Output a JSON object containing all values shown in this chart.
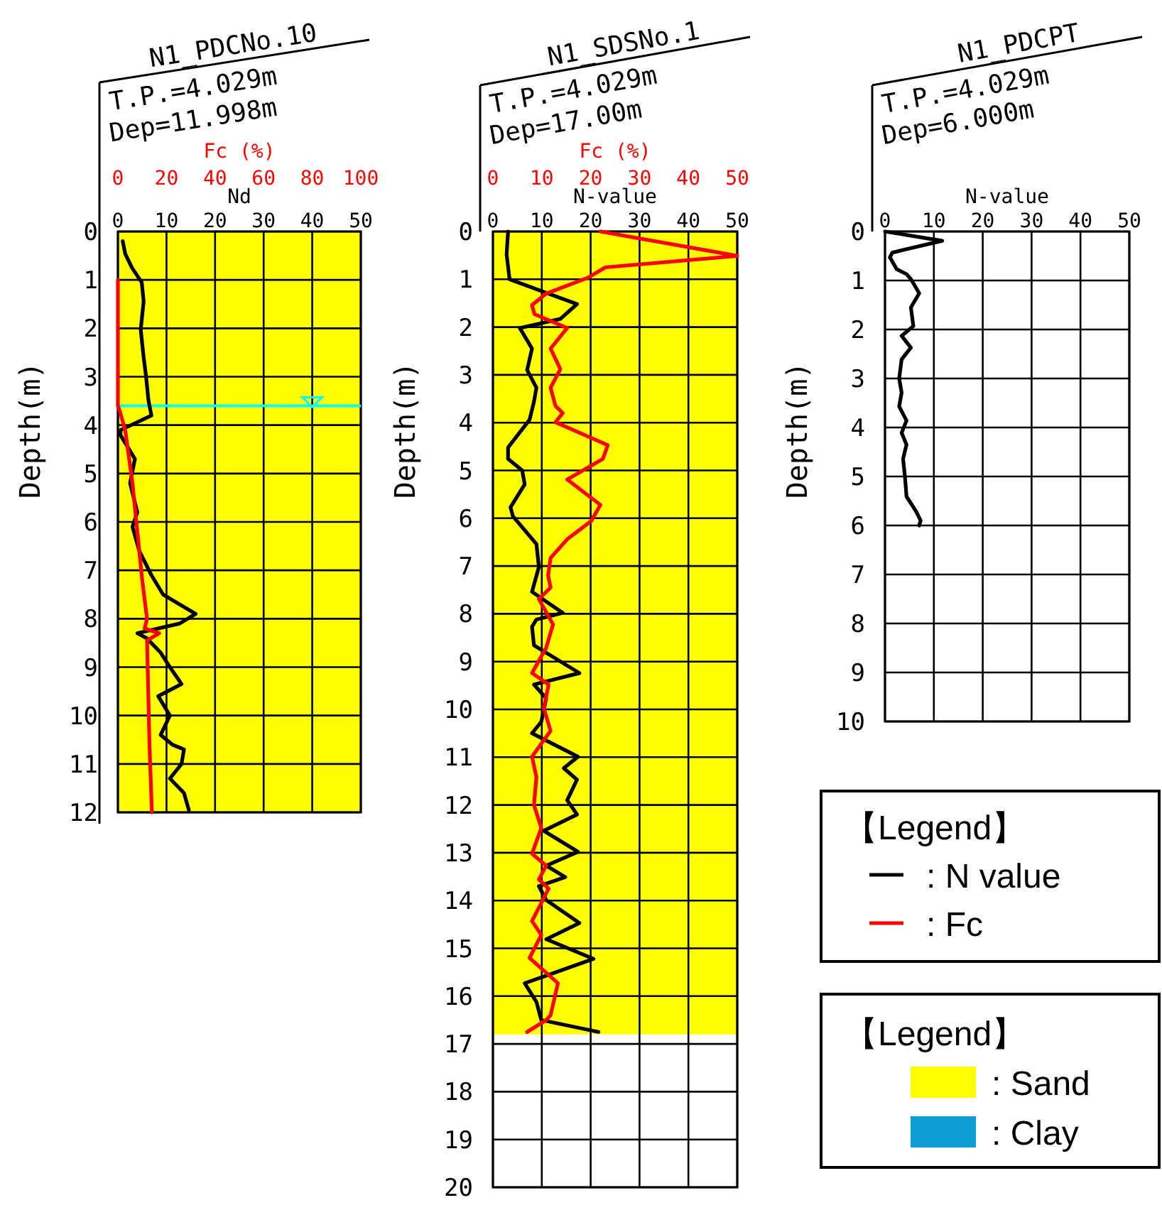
{
  "chart_data": [
    {
      "type": "line",
      "title": "N1_PDCNo.10",
      "subtitle": "T.P.=4.029m",
      "annotations": [
        "Dep=11.998m"
      ],
      "xlabel": "Nd",
      "x2label": "Fc (%)",
      "ylabel": "Depth(m)",
      "xlim": [
        0,
        50
      ],
      "xticks": [
        0,
        10,
        20,
        30,
        40,
        50
      ],
      "x2lim": [
        0,
        100
      ],
      "x2ticks": [
        0,
        20,
        40,
        60,
        80,
        100
      ],
      "ylim": [
        12,
        0
      ],
      "yticks": [
        0,
        1,
        2,
        3,
        4,
        5,
        6,
        7,
        8,
        9,
        10,
        11,
        12
      ],
      "grid": true,
      "bands": [
        {
          "axis": "y",
          "from": 0,
          "to": 12,
          "color": "#ffff00"
        }
      ],
      "ref_lines": [
        {
          "axis": "y",
          "value": 3.6,
          "color": "#00ffff"
        }
      ],
      "series": [
        {
          "color": "#000000",
          "x": [
            1.0,
            1.5,
            2.9,
            4.9,
            5.3,
            4.7,
            5.3,
            5.8,
            6.3,
            6.9,
            0.6,
            0.5,
            3.5,
            2.5,
            4.0,
            3.0,
            4.4,
            6.9,
            9.3,
            16.0,
            12.7,
            4.0,
            5.9,
            8.8,
            10.7,
            13.1,
            8.3,
            10.7,
            8.8,
            11.2,
            13.6,
            13.1,
            10.7,
            13.6,
            14.6
          ],
          "values": [
            0.2,
            0.46,
            0.75,
            1.05,
            1.44,
            2.03,
            2.6,
            3.0,
            3.5,
            3.8,
            4.1,
            4.2,
            4.7,
            5.2,
            5.8,
            6.1,
            6.6,
            7.1,
            7.5,
            7.9,
            8.1,
            8.3,
            8.4,
            8.7,
            9.0,
            9.35,
            9.6,
            10.0,
            10.4,
            10.6,
            10.7,
            11.0,
            11.3,
            11.6,
            11.95
          ]
        },
        {
          "color": "#ff0000",
          "axis": "x2",
          "x": [
            0,
            0,
            1,
            3,
            6,
            10,
            12,
            11,
            17,
            12,
            13,
            14
          ],
          "values": [
            1.0,
            3.6,
            3.75,
            4.1,
            5.2,
            7.2,
            8.0,
            8.2,
            8.3,
            8.45,
            10.6,
            12.0
          ]
        }
      ]
    },
    {
      "type": "line",
      "title": "N1_SDSNo.1",
      "subtitle": "T.P.=4.029m",
      "annotations": [
        "Dep=17.00m"
      ],
      "xlabel": "N-value",
      "x2label": "Fc (%)",
      "ylabel": "Depth(m)",
      "xlim": [
        0,
        50
      ],
      "xticks": [
        0,
        10,
        20,
        30,
        40,
        50
      ],
      "x2lim": [
        0,
        50
      ],
      "x2ticks": [
        0,
        10,
        20,
        30,
        40,
        50
      ],
      "ylim": [
        20,
        0
      ],
      "yticks": [
        0,
        1,
        2,
        3,
        4,
        5,
        6,
        7,
        8,
        9,
        10,
        11,
        12,
        13,
        14,
        15,
        16,
        17,
        18,
        19,
        20
      ],
      "grid": true,
      "legend": "bottom right",
      "legend_title": "【Legend】",
      "bands": [
        {
          "axis": "y",
          "from": 0,
          "to": 16.8,
          "color": "#ffff00"
        }
      ],
      "series": [
        {
          "name": ": N value",
          "color": "#000000",
          "x": [
            3.1,
            2.8,
            3.4,
            17.2,
            13.8,
            5.5,
            8.0,
            7.0,
            8.9,
            8.4,
            7.5,
            3.1,
            3.1,
            6.0,
            6.5,
            3.6,
            4.1,
            8.9,
            9.4,
            8.0,
            14.3,
            8.9,
            8.0,
            8.4,
            17.7,
            8.4,
            10.9,
            9.9,
            8.0,
            17.4,
            14.5,
            17.2,
            15.2,
            17.2,
            10.4,
            17.4,
            10.9,
            14.8,
            9.4,
            10.9,
            17.7,
            10.9,
            20.6,
            6.5,
            8.9,
            9.9,
            21.6
          ],
          "values": [
            0,
            0.48,
            1.0,
            1.52,
            1.83,
            2.02,
            2.45,
            2.9,
            3.27,
            3.56,
            3.94,
            4.52,
            4.76,
            5.0,
            5.29,
            5.77,
            5.96,
            6.54,
            7.02,
            7.54,
            7.98,
            8.12,
            8.27,
            8.66,
            9.24,
            9.48,
            9.77,
            10.26,
            10.5,
            10.99,
            11.23,
            11.47,
            11.9,
            12.2,
            12.54,
            12.98,
            13.27,
            13.51,
            13.7,
            13.99,
            14.47,
            14.81,
            15.22,
            15.73,
            16.12,
            16.5,
            16.75
          ]
        },
        {
          "name": ": Fc",
          "color": "#ff0000",
          "axis": "x2",
          "x": [
            22.0,
            50,
            23.0,
            19.6,
            10.9,
            8.0,
            8.5,
            15.2,
            11.8,
            13.8,
            11.8,
            12.8,
            14.3,
            12.8,
            23.5,
            22.5,
            15.2,
            22.0,
            20.1,
            15.2,
            11.8,
            11.3,
            11.8,
            9.4,
            12.3,
            10.9,
            8.0,
            11.4,
            10.4,
            11.8,
            8.0,
            8.9,
            8.4,
            9.9,
            8.0,
            10.9,
            9.4,
            11.4,
            8.0,
            9.9,
            7.5,
            13.3,
            11.8,
            10.9,
            7.0
          ],
          "values": [
            0,
            0.51,
            0.75,
            0.96,
            1.3,
            1.54,
            1.73,
            2.02,
            2.45,
            2.88,
            3.27,
            3.65,
            3.8,
            3.99,
            4.47,
            4.76,
            5.19,
            5.72,
            6.06,
            6.44,
            6.83,
            7.2,
            7.45,
            7.69,
            8.22,
            8.71,
            9.24,
            9.48,
            9.97,
            10.45,
            10.99,
            11.42,
            12.0,
            12.48,
            13.02,
            13.27,
            13.56,
            13.75,
            14.43,
            14.72,
            15.2,
            15.73,
            16.4,
            16.5,
            16.75
          ]
        }
      ]
    },
    {
      "type": "line",
      "title": "N1_PDCPT",
      "subtitle": "T.P.=4.029m",
      "annotations": [
        "Dep=6.000m"
      ],
      "xlabel": "N-value",
      "ylabel": "Depth(m)",
      "xlim": [
        0,
        50
      ],
      "xticks": [
        0,
        10,
        20,
        30,
        40,
        50
      ],
      "ylim": [
        10,
        0
      ],
      "yticks": [
        0,
        1,
        2,
        3,
        4,
        5,
        6,
        7,
        8,
        9,
        10
      ],
      "grid": true,
      "series": [
        {
          "color": "#000000",
          "x": [
            0,
            11.7,
            1.5,
            1.0,
            2.4,
            4.4,
            5.3,
            7.0,
            5.3,
            5.8,
            3.4,
            5.3,
            3.4,
            2.9,
            3.4,
            2.9,
            4.4,
            3.4,
            4.4,
            3.7,
            4.1,
            4.4,
            6.3,
            7.3,
            7.0
          ],
          "values": [
            0,
            0.19,
            0.43,
            0.53,
            0.77,
            0.87,
            0.97,
            1.26,
            1.55,
            1.93,
            2.13,
            2.37,
            2.61,
            3.0,
            3.29,
            3.57,
            3.86,
            4.11,
            4.35,
            4.64,
            5.02,
            5.41,
            5.7,
            5.9,
            6.0
          ]
        }
      ]
    },
    {
      "type": "other",
      "title": "【Legend】",
      "categories": [
        ": Sand",
        ": Clay"
      ],
      "colors": [
        "#ffff00",
        "#0e9cd5"
      ]
    }
  ]
}
